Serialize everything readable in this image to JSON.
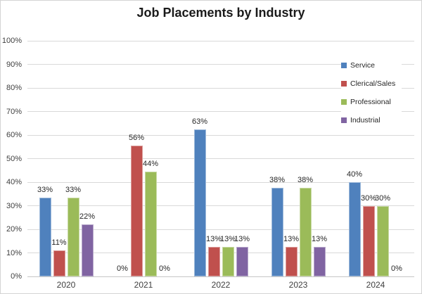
{
  "chart_data": {
    "type": "bar",
    "title": "Job Placements by Industry",
    "categories": [
      "2020",
      "2021",
      "2022",
      "2023",
      "2024"
    ],
    "series": [
      {
        "name": "Service",
        "color": "#4F81BD",
        "values": [
          33.3,
          0,
          62.5,
          37.5,
          40
        ],
        "labels": [
          "33%",
          "0%",
          "63%",
          "38%",
          "40%"
        ]
      },
      {
        "name": "Clerical/Sales",
        "color": "#C0504D",
        "values": [
          11.1,
          55.6,
          12.5,
          12.5,
          30
        ],
        "labels": [
          "11%",
          "56%",
          "13%",
          "13%",
          "30%"
        ]
      },
      {
        "name": "Professional",
        "color": "#9BBB59",
        "values": [
          33.3,
          44.4,
          12.5,
          37.5,
          30
        ],
        "labels": [
          "33%",
          "44%",
          "13%",
          "38%",
          "30%"
        ]
      },
      {
        "name": "Industrial",
        "color": "#8064A2",
        "values": [
          22.2,
          0,
          12.5,
          12.5,
          0
        ],
        "labels": [
          "22%",
          "0%",
          "13%",
          "13%",
          "0%"
        ]
      }
    ],
    "ylim": [
      0,
      100
    ],
    "ytick_step": 10,
    "ytick_labels": [
      "0%",
      "10%",
      "20%",
      "30%",
      "40%",
      "50%",
      "60%",
      "70%",
      "80%",
      "90%",
      "100%"
    ],
    "xlabel": "",
    "ylabel": "",
    "grid": true,
    "legend_position": "inside-right",
    "gridline_color": "#d9d9d9",
    "axis_line_color": "#c6c6c6"
  }
}
